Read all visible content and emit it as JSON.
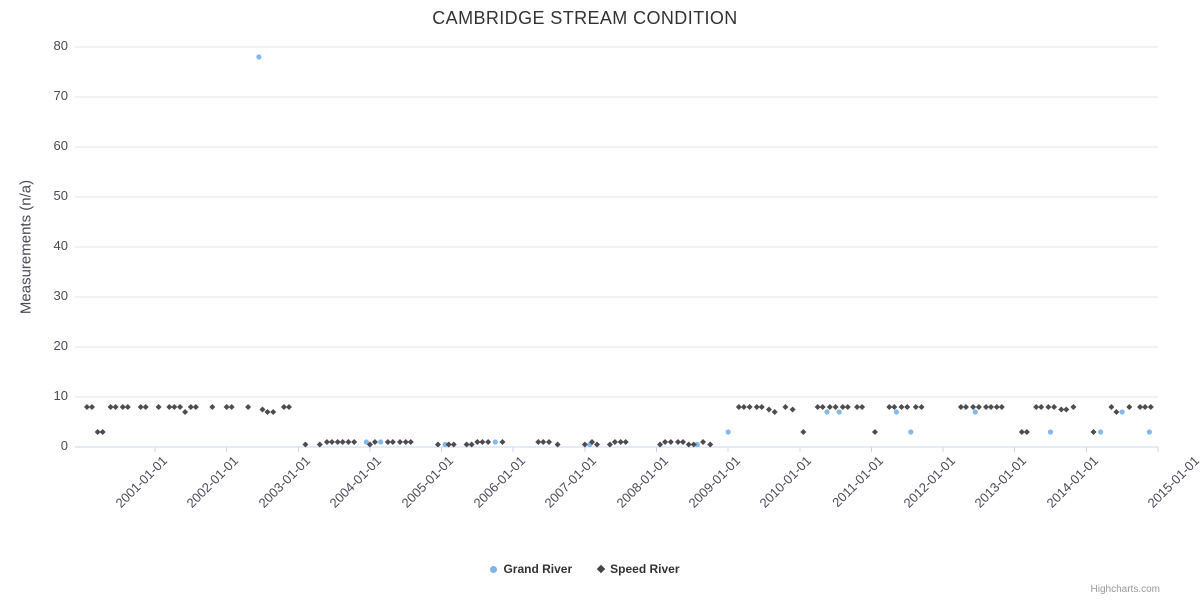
{
  "page": {
    "credit": "Highcharts.com"
  },
  "chart_data": {
    "type": "scatter",
    "title": "CAMBRIDGE STREAM CONDITION",
    "ylabel": "Measurements (n/a)",
    "ylim": [
      0,
      80
    ],
    "yticks": [
      0,
      10,
      20,
      30,
      40,
      50,
      60,
      70,
      80
    ],
    "x_tick_labels": [
      "2001-01-01",
      "2002-01-01",
      "2003-01-01",
      "2004-01-01",
      "2005-01-01",
      "2006-01-01",
      "2007-01-01",
      "2008-01-01",
      "2009-01-01",
      "2010-01-01",
      "2011-01-01",
      "2012-01-01",
      "2013-01-01",
      "2014-01-01",
      "2015-01-01"
    ],
    "x_unit": "date (fractional year)",
    "grid": true,
    "legend_position": "bottom-center",
    "series": [
      {
        "name": "Grand River",
        "color": "#7cb5ec",
        "marker": "circle",
        "points": [
          [
            2002.45,
            78
          ],
          [
            2003.95,
            1
          ],
          [
            2004.15,
            1
          ],
          [
            2005.05,
            0.5
          ],
          [
            2005.75,
            1
          ],
          [
            2007.07,
            0.5
          ],
          [
            2008.57,
            0.5
          ],
          [
            2009.0,
            3
          ],
          [
            2010.38,
            7
          ],
          [
            2010.55,
            7
          ],
          [
            2011.35,
            7
          ],
          [
            2011.55,
            3
          ],
          [
            2012.45,
            7
          ],
          [
            2013.5,
            3
          ],
          [
            2014.2,
            3
          ],
          [
            2014.5,
            7
          ],
          [
            2014.88,
            3
          ]
        ]
      },
      {
        "name": "Speed River",
        "color": "#434348",
        "marker": "diamond",
        "points": [
          [
            2000.05,
            8
          ],
          [
            2000.12,
            8
          ],
          [
            2000.2,
            3
          ],
          [
            2000.27,
            3
          ],
          [
            2000.38,
            8
          ],
          [
            2000.45,
            8
          ],
          [
            2000.55,
            8
          ],
          [
            2000.62,
            8
          ],
          [
            2000.8,
            8
          ],
          [
            2000.87,
            8
          ],
          [
            2001.05,
            8
          ],
          [
            2001.2,
            8
          ],
          [
            2001.27,
            8
          ],
          [
            2001.35,
            8
          ],
          [
            2001.42,
            7
          ],
          [
            2001.5,
            8
          ],
          [
            2001.57,
            8
          ],
          [
            2001.8,
            8
          ],
          [
            2002.0,
            8
          ],
          [
            2002.07,
            8
          ],
          [
            2002.3,
            8
          ],
          [
            2002.5,
            7.5
          ],
          [
            2002.57,
            7
          ],
          [
            2002.65,
            7
          ],
          [
            2002.8,
            8
          ],
          [
            2002.87,
            8
          ],
          [
            2003.1,
            0.5
          ],
          [
            2003.3,
            0.5
          ],
          [
            2003.4,
            1
          ],
          [
            2003.47,
            1
          ],
          [
            2003.55,
            1
          ],
          [
            2003.62,
            1
          ],
          [
            2003.7,
            1
          ],
          [
            2003.78,
            1
          ],
          [
            2004.0,
            0.5
          ],
          [
            2004.07,
            1
          ],
          [
            2004.25,
            1
          ],
          [
            2004.32,
            1
          ],
          [
            2004.42,
            1
          ],
          [
            2004.5,
            1
          ],
          [
            2004.57,
            1
          ],
          [
            2004.95,
            0.5
          ],
          [
            2005.1,
            0.5
          ],
          [
            2005.17,
            0.5
          ],
          [
            2005.35,
            0.5
          ],
          [
            2005.42,
            0.5
          ],
          [
            2005.5,
            1
          ],
          [
            2005.57,
            1
          ],
          [
            2005.65,
            1
          ],
          [
            2005.85,
            1
          ],
          [
            2006.35,
            1
          ],
          [
            2006.42,
            1
          ],
          [
            2006.5,
            1
          ],
          [
            2006.62,
            0.5
          ],
          [
            2007.0,
            0.5
          ],
          [
            2007.1,
            1
          ],
          [
            2007.17,
            0.5
          ],
          [
            2007.35,
            0.5
          ],
          [
            2007.42,
            1
          ],
          [
            2007.5,
            1
          ],
          [
            2007.57,
            1
          ],
          [
            2008.05,
            0.5
          ],
          [
            2008.12,
            1
          ],
          [
            2008.2,
            1
          ],
          [
            2008.3,
            1
          ],
          [
            2008.37,
            1
          ],
          [
            2008.45,
            0.5
          ],
          [
            2008.52,
            0.5
          ],
          [
            2008.65,
            1
          ],
          [
            2008.75,
            0.5
          ],
          [
            2009.15,
            8
          ],
          [
            2009.22,
            8
          ],
          [
            2009.3,
            8
          ],
          [
            2009.4,
            8
          ],
          [
            2009.47,
            8
          ],
          [
            2009.57,
            7.5
          ],
          [
            2009.65,
            7
          ],
          [
            2009.8,
            8
          ],
          [
            2009.9,
            7.5
          ],
          [
            2010.05,
            3
          ],
          [
            2010.25,
            8
          ],
          [
            2010.32,
            8
          ],
          [
            2010.42,
            8
          ],
          [
            2010.5,
            8
          ],
          [
            2010.6,
            8
          ],
          [
            2010.67,
            8
          ],
          [
            2010.8,
            8
          ],
          [
            2010.87,
            8
          ],
          [
            2011.05,
            3
          ],
          [
            2011.25,
            8
          ],
          [
            2011.32,
            8
          ],
          [
            2011.42,
            8
          ],
          [
            2011.5,
            8
          ],
          [
            2011.62,
            8
          ],
          [
            2011.7,
            8
          ],
          [
            2012.25,
            8
          ],
          [
            2012.32,
            8
          ],
          [
            2012.42,
            8
          ],
          [
            2012.5,
            8
          ],
          [
            2012.6,
            8
          ],
          [
            2012.67,
            8
          ],
          [
            2012.75,
            8
          ],
          [
            2012.82,
            8
          ],
          [
            2013.1,
            3
          ],
          [
            2013.17,
            3
          ],
          [
            2013.3,
            8
          ],
          [
            2013.37,
            8
          ],
          [
            2013.47,
            8
          ],
          [
            2013.55,
            8
          ],
          [
            2013.65,
            7.5
          ],
          [
            2013.72,
            7.5
          ],
          [
            2013.82,
            8
          ],
          [
            2014.1,
            3
          ],
          [
            2014.35,
            8
          ],
          [
            2014.42,
            7
          ],
          [
            2014.6,
            8
          ],
          [
            2014.75,
            8
          ],
          [
            2014.82,
            8
          ],
          [
            2014.9,
            8
          ]
        ]
      }
    ]
  }
}
